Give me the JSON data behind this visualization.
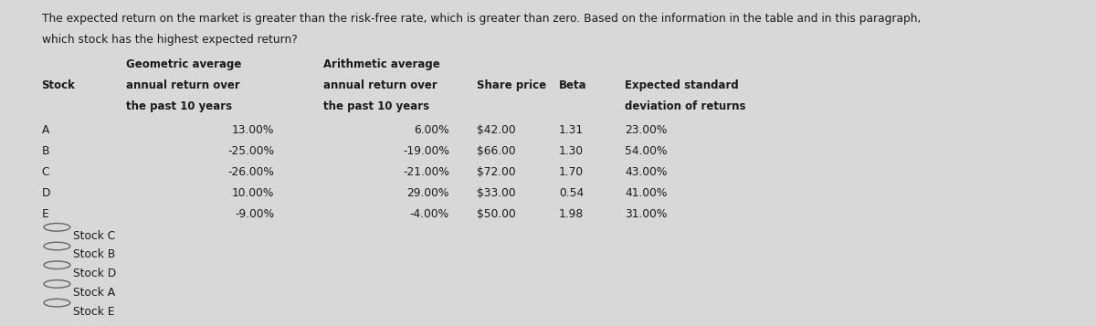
{
  "bg_color": "#d8d8d8",
  "text_color": "#1a1a1a",
  "para1": "The expected return on the market is greater than the risk-free rate, which is greater than zero. Based on the information in the table and in this paragraph,",
  "para2": "which stock has the highest expected return?",
  "stocks": [
    "A",
    "B",
    "C",
    "D",
    "E"
  ],
  "geo_avg": [
    "13.00%",
    "-25.00%",
    "-26.00%",
    "10.00%",
    "-9.00%"
  ],
  "arith_avg": [
    "6.00%",
    "-19.00%",
    "-21.00%",
    "29.00%",
    "-4.00%"
  ],
  "share_price": [
    "$42.00",
    "$66.00",
    "$72.00",
    "$33.00",
    "$50.00"
  ],
  "beta": [
    "1.31",
    "1.30",
    "1.70",
    "0.54",
    "1.98"
  ],
  "exp_std": [
    "23.00%",
    "54.00%",
    "43.00%",
    "41.00%",
    "31.00%"
  ],
  "options": [
    "Stock C",
    "Stock B",
    "Stock D",
    "Stock A",
    "Stock E"
  ],
  "col_stock": 0.038,
  "col_geo": 0.115,
  "col_arith": 0.295,
  "col_price": 0.435,
  "col_beta": 0.51,
  "col_std": 0.57
}
